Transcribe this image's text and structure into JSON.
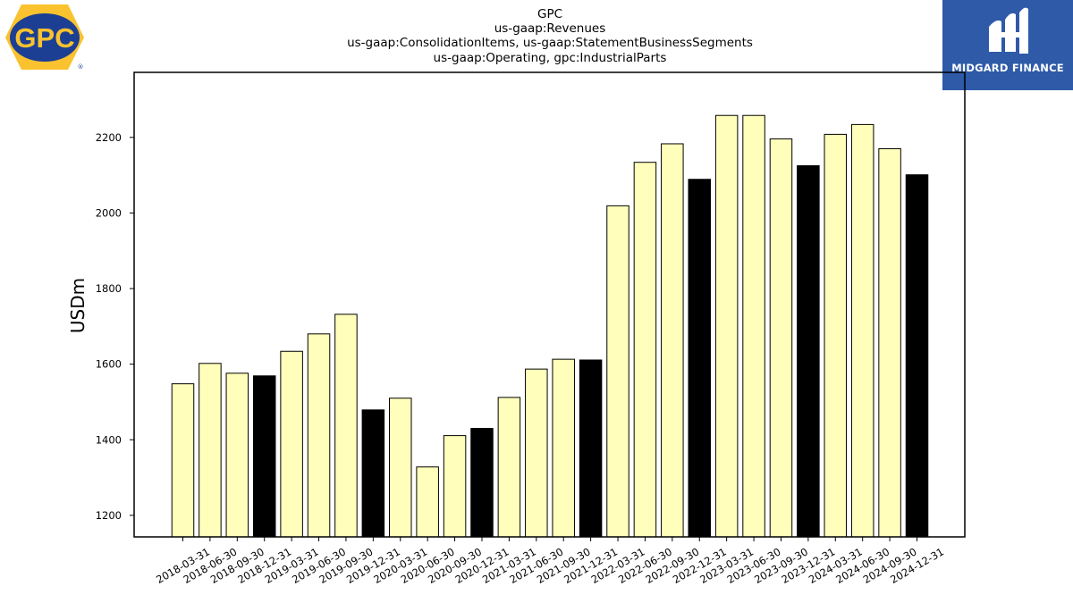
{
  "logos": {
    "left": {
      "text": "GPC",
      "trademark": "®",
      "icon": "gpc-logo"
    },
    "right": {
      "text": "MIDGARD FINANCE",
      "icon": "midgard-finance-logo"
    }
  },
  "colors": {
    "bar_default": "#ffffbb",
    "bar_q4": "#000000",
    "bar_edge": "#000000",
    "logo_blue": "#2e5aa8",
    "gpc_yellow": "#f9c22e",
    "gpc_blue": "#1c3f94"
  },
  "chart_data": {
    "type": "bar",
    "title": [
      "GPC",
      "us-gaap:Revenues",
      "us-gaap:ConsolidationItems, us-gaap:StatementBusinessSegments",
      "us-gaap:Operating, gpc:IndustrialParts"
    ],
    "xlabel": "",
    "ylabel": "USDm",
    "ylim": [
      1143,
      2372
    ],
    "yticks": [
      1200,
      1400,
      1600,
      1800,
      2000,
      2200
    ],
    "grid": false,
    "legend": "none",
    "categories": [
      "2018-03-31",
      "2018-06-30",
      "2018-09-30",
      "2018-12-31",
      "2019-03-31",
      "2019-06-30",
      "2019-09-30",
      "2019-12-31",
      "2020-03-31",
      "2020-06-30",
      "2020-09-30",
      "2020-12-31",
      "2021-03-31",
      "2021-06-30",
      "2021-09-30",
      "2021-12-31",
      "2022-03-31",
      "2022-06-30",
      "2022-09-30",
      "2022-12-31",
      "2023-03-31",
      "2023-06-30",
      "2023-09-30",
      "2023-12-31",
      "2024-03-31",
      "2024-06-30",
      "2024-09-30",
      "2024-12-31"
    ],
    "values": [
      1548,
      1602,
      1576,
      1569,
      1634,
      1680,
      1732,
      1479,
      1510,
      1328,
      1411,
      1430,
      1512,
      1587,
      1613,
      1611,
      2019,
      2134,
      2183,
      2089,
      2258,
      2258,
      2196,
      2125,
      2208,
      2234,
      2170,
      2101
    ],
    "highlight_q4": true
  }
}
